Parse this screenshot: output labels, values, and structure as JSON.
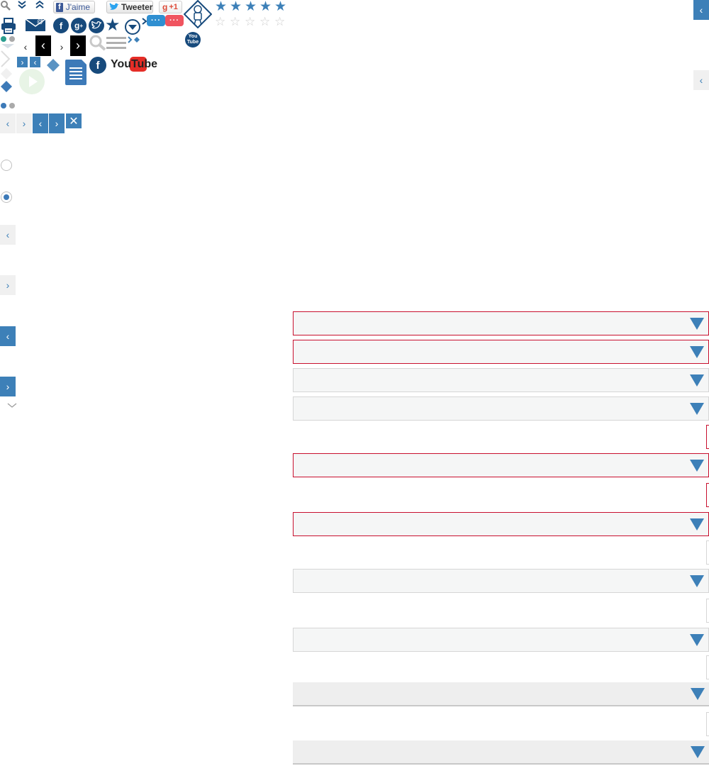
{
  "toolbar": {
    "facebook_like_label": "J'aime",
    "tweet_label": "Tweeter",
    "gplus_label": "+1",
    "youtube_word": "YouTube",
    "youtube_badge": "You Tube"
  },
  "rating": {
    "value": 5,
    "max": 5
  },
  "colors": {
    "accent": "#3d80b8",
    "navy": "#174a7c",
    "error": "#c8102e",
    "bubble_blue": "#2f8fd1",
    "bubble_red": "#f0545f"
  },
  "icons": [
    "search-icon",
    "double-chevron-down-icon",
    "double-chevron-up-icon",
    "print-icon",
    "email-icon",
    "facebook-icon",
    "googleplus-icon",
    "twitter-icon",
    "star-icon",
    "dropdown-circle-icon",
    "chat-bubble-icon",
    "mascot-icon",
    "youtube-icon",
    "document-icon",
    "play-icon",
    "close-icon",
    "hamburger-icon"
  ],
  "form": {
    "radio_options": [
      {
        "checked": false
      },
      {
        "checked": true
      }
    ],
    "select_rows": [
      {
        "state": "error"
      },
      {
        "state": "error"
      },
      {
        "state": "normal"
      },
      {
        "state": "normal"
      },
      {
        "state": "error"
      },
      {
        "state": "error"
      },
      {
        "state": "normal"
      },
      {
        "state": "normal"
      },
      {
        "state": "flat"
      },
      {
        "state": "flat"
      }
    ]
  }
}
